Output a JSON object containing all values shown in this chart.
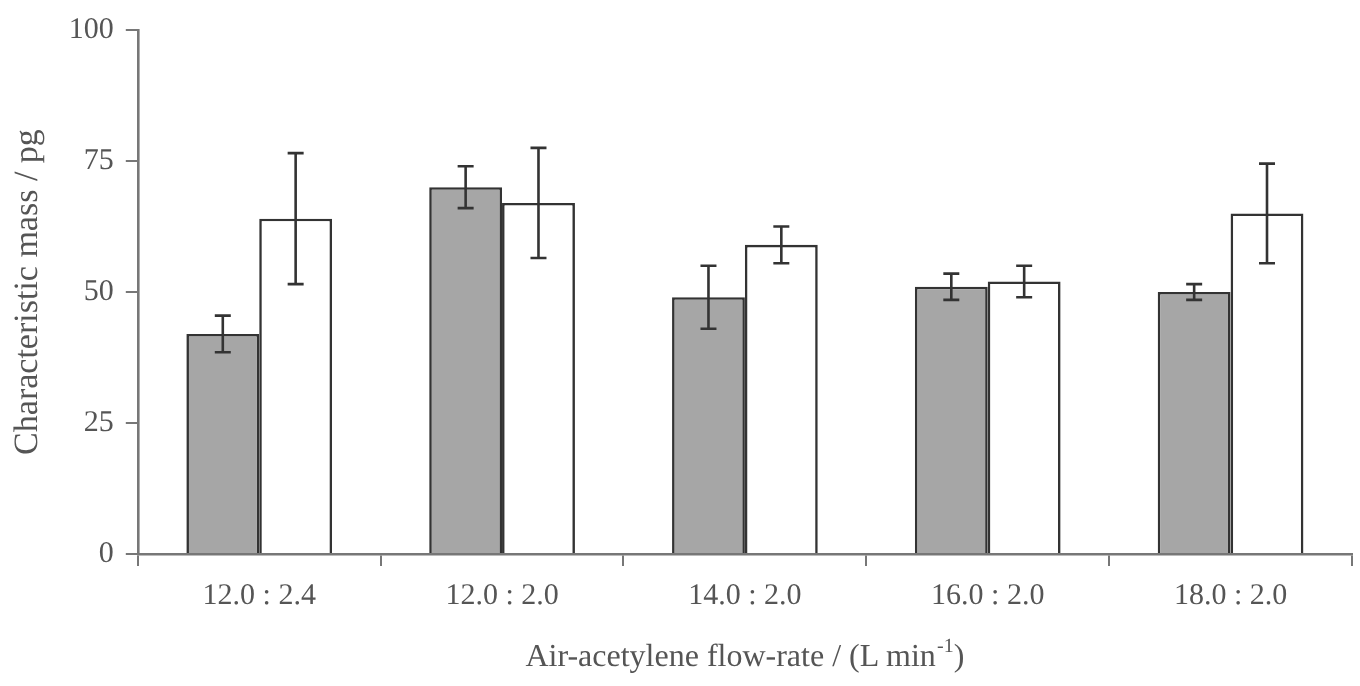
{
  "chart_data": {
    "type": "bar",
    "xlabel": "Air-acetylene flow-rate / (L min$^{-1}$)",
    "ylabel": "Characteristic mass / pg",
    "categories": [
      "12.0 : 2.4",
      "12.0 : 2.0",
      "14.0 : 2.0",
      "16.0 : 2.0",
      "18.0 : 2.0"
    ],
    "series": [
      {
        "color": "#a6a6a6",
        "values": [
          42,
          70,
          49,
          51,
          50
        ],
        "errors": [
          3.5,
          4,
          6,
          2.5,
          1.5
        ]
      },
      {
        "color": "#ffffff",
        "values": [
          64,
          67,
          59,
          52,
          65
        ],
        "errors": [
          12.5,
          10.5,
          3.5,
          3,
          9.5
        ]
      }
    ],
    "ylim": [
      0,
      100
    ],
    "yticks": [
      0,
      25,
      50,
      75,
      100
    ],
    "grid": false,
    "legend": false
  }
}
